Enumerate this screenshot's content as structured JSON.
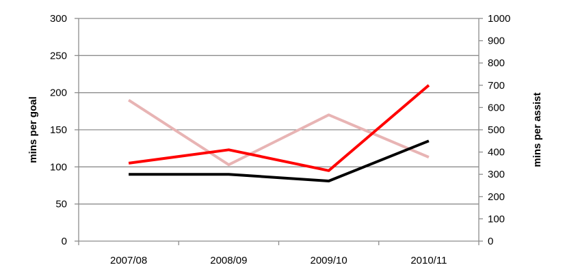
{
  "chart_data": {
    "type": "line",
    "categories": [
      "2007/08",
      "2008/09",
      "2009/10",
      "2010/11"
    ],
    "ylabel": "mins per goal",
    "y2label": "mins per assist",
    "ylim": [
      0,
      300
    ],
    "y2lim": [
      0,
      1000
    ],
    "yticks": [
      0,
      50,
      100,
      150,
      200,
      250,
      300
    ],
    "y2ticks": [
      0,
      100,
      200,
      300,
      400,
      500,
      600,
      700,
      800,
      900,
      1000
    ],
    "grid": true,
    "legend": "none",
    "series": [
      {
        "values": [
          90,
          90,
          81,
          135
        ],
        "axis": "left",
        "color": "#000000"
      },
      {
        "values": [
          105,
          123,
          95,
          210
        ],
        "axis": "left",
        "color": "#ff0000"
      },
      {
        "values": [
          633,
          343,
          567,
          377
        ],
        "axis": "right",
        "color": "#e8b4b4"
      }
    ]
  }
}
